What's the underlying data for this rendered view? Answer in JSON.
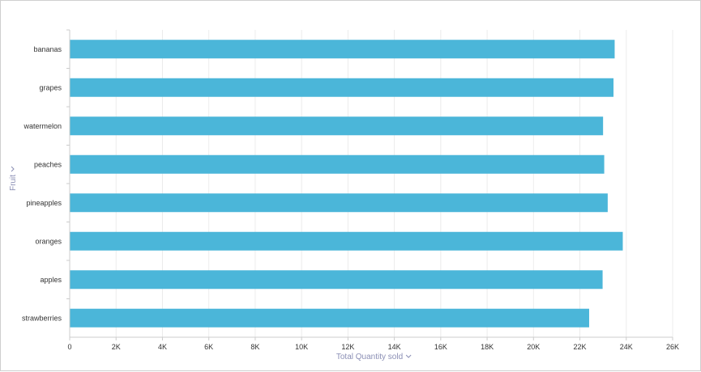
{
  "chart_data": {
    "type": "bar",
    "orientation": "horizontal",
    "categories": [
      "bananas",
      "grapes",
      "watermelon",
      "peaches",
      "pineapples",
      "oranges",
      "apples",
      "strawberries"
    ],
    "series": [
      {
        "values": [
          23500,
          23450,
          23000,
          23050,
          23200,
          23850,
          22980,
          22400
        ]
      }
    ],
    "xlabel": "Total Quantity sold",
    "ylabel": "Fruit",
    "xlim": [
      0,
      26000
    ],
    "xticks": [
      0,
      2000,
      4000,
      6000,
      8000,
      10000,
      12000,
      14000,
      16000,
      18000,
      20000,
      22000,
      24000,
      26000
    ],
    "xtick_labels": [
      "0",
      "2K",
      "4K",
      "6K",
      "8K",
      "10K",
      "12K",
      "14K",
      "16K",
      "18K",
      "20K",
      "22K",
      "24K",
      "26K"
    ],
    "grid": true,
    "legend": "none",
    "bar_color": "#4bb6d9",
    "axis_title_color": "#8b8fb5",
    "gridline_color": "#ececec"
  }
}
